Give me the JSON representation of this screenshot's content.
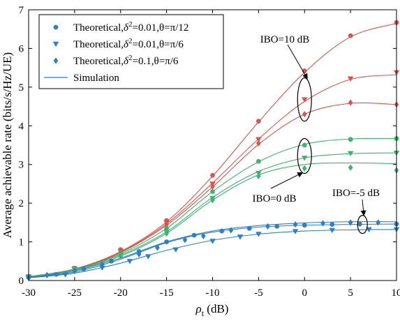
{
  "chart_data": {
    "type": "line",
    "xlabel_symbol": "ρ",
    "xlabel_sub": "t",
    "xlabel_unit": " (dB)",
    "ylabel": "Average achievable rate (bits/s/Hz/UE)",
    "xlim": [
      -30,
      10
    ],
    "ylim": [
      0,
      7
    ],
    "xticks": [
      -30,
      -25,
      -20,
      -15,
      -10,
      -5,
      0,
      5,
      10
    ],
    "yticks": [
      0,
      1,
      2,
      3,
      4,
      5,
      6,
      7
    ],
    "grid": false,
    "legend_position": "top-left",
    "legend": [
      {
        "marker": "circle",
        "pre": "Theoretical,",
        "sym": "δ",
        "sup": "2",
        "post": "=0.01,θ=π/12"
      },
      {
        "marker": "triangle-down",
        "pre": "Theoretical,",
        "sym": "δ",
        "sup": "2",
        "post": "=0.01,θ=π/6"
      },
      {
        "marker": "diamond",
        "pre": "Theoretical,",
        "sym": "δ",
        "sup": "2",
        "post": "=0.1,θ=π/6"
      },
      {
        "marker": "line",
        "pre": "Simulation",
        "sym": "",
        "sup": "",
        "post": ""
      }
    ],
    "annotations": [
      {
        "text": "IBO=10 dB",
        "x": 0,
        "y": 4.7
      },
      {
        "text": "IBO=0 dB",
        "x": 0,
        "y": 3.15
      },
      {
        "text": "IBO=-5 dB",
        "x": 6.5,
        "y": 1.45
      }
    ],
    "groups": [
      {
        "name": "IBO=10 dB",
        "color": "#d9534f",
        "series": [
          {
            "marker": "circle",
            "points": [
              [
                -30,
                0.1
              ],
              [
                -25,
                0.32
              ],
              [
                -20,
                0.8
              ],
              [
                -15,
                1.55
              ],
              [
                -10,
                2.72
              ],
              [
                -5,
                4.12
              ],
              [
                0,
                5.42
              ],
              [
                5,
                6.33
              ],
              [
                10,
                6.67
              ]
            ],
            "curve": [
              [
                -30,
                0.1
              ],
              [
                -25,
                0.3
              ],
              [
                -20,
                0.75
              ],
              [
                -15,
                1.52
              ],
              [
                -10,
                2.7
              ],
              [
                -5,
                4.1
              ],
              [
                0,
                5.38
              ],
              [
                5,
                6.3
              ],
              [
                10,
                6.65
              ]
            ]
          },
          {
            "marker": "triangle-down",
            "points": [
              [
                -30,
                0.1
              ],
              [
                -25,
                0.31
              ],
              [
                -20,
                0.76
              ],
              [
                -15,
                1.5
              ],
              [
                -10,
                2.5
              ],
              [
                -5,
                3.65
              ],
              [
                0,
                4.68
              ],
              [
                5,
                5.22
              ],
              [
                10,
                5.38
              ]
            ],
            "curve": [
              [
                -30,
                0.1
              ],
              [
                -25,
                0.3
              ],
              [
                -20,
                0.74
              ],
              [
                -15,
                1.47
              ],
              [
                -10,
                2.52
              ],
              [
                -5,
                3.66
              ],
              [
                0,
                4.63
              ],
              [
                5,
                5.2
              ],
              [
                10,
                5.32
              ]
            ]
          },
          {
            "marker": "diamond",
            "points": [
              [
                -30,
                0.1
              ],
              [
                -25,
                0.3
              ],
              [
                -20,
                0.74
              ],
              [
                -15,
                1.45
              ],
              [
                -10,
                2.43
              ],
              [
                -5,
                3.55
              ],
              [
                0,
                4.3
              ],
              [
                5,
                4.6
              ],
              [
                10,
                4.55
              ]
            ],
            "curve": [
              [
                -30,
                0.1
              ],
              [
                -25,
                0.29
              ],
              [
                -20,
                0.72
              ],
              [
                -15,
                1.43
              ],
              [
                -10,
                2.42
              ],
              [
                -5,
                3.52
              ],
              [
                0,
                4.3
              ],
              [
                5,
                4.58
              ],
              [
                10,
                4.55
              ]
            ]
          }
        ]
      },
      {
        "name": "IBO=0 dB",
        "color": "#3cb46e",
        "series": [
          {
            "marker": "circle",
            "points": [
              [
                -30,
                0.1
              ],
              [
                -25,
                0.3
              ],
              [
                -20,
                0.7
              ],
              [
                -15,
                1.35
              ],
              [
                -10,
                2.3
              ],
              [
                -5,
                3.08
              ],
              [
                0,
                3.5
              ],
              [
                5,
                3.65
              ],
              [
                10,
                3.67
              ]
            ],
            "curve": [
              [
                -30,
                0.1
              ],
              [
                -25,
                0.29
              ],
              [
                -20,
                0.69
              ],
              [
                -15,
                1.35
              ],
              [
                -10,
                2.3
              ],
              [
                -5,
                3.07
              ],
              [
                0,
                3.52
              ],
              [
                5,
                3.66
              ],
              [
                10,
                3.67
              ]
            ]
          },
          {
            "marker": "triangle-down",
            "points": [
              [
                -30,
                0.1
              ],
              [
                -25,
                0.28
              ],
              [
                -20,
                0.66
              ],
              [
                -15,
                1.25
              ],
              [
                -10,
                2.13
              ],
              [
                -5,
                2.78
              ],
              [
                0,
                3.17
              ],
              [
                5,
                3.29
              ],
              [
                10,
                3.3
              ]
            ],
            "curve": [
              [
                -30,
                0.1
              ],
              [
                -25,
                0.28
              ],
              [
                -20,
                0.66
              ],
              [
                -15,
                1.26
              ],
              [
                -10,
                2.15
              ],
              [
                -5,
                2.82
              ],
              [
                0,
                3.17
              ],
              [
                5,
                3.28
              ],
              [
                10,
                3.3
              ]
            ]
          },
          {
            "marker": "diamond",
            "points": [
              [
                -30,
                0.1
              ],
              [
                -25,
                0.27
              ],
              [
                -20,
                0.63
              ],
              [
                -15,
                1.22
              ],
              [
                -10,
                2.08
              ],
              [
                -5,
                2.7
              ],
              [
                0,
                2.9
              ],
              [
                5,
                2.92
              ],
              [
                10,
                2.85
              ]
            ],
            "curve": [
              [
                -30,
                0.1
              ],
              [
                -25,
                0.27
              ],
              [
                -20,
                0.63
              ],
              [
                -15,
                1.22
              ],
              [
                -10,
                2.08
              ],
              [
                -5,
                2.73
              ],
              [
                0,
                3.0
              ],
              [
                5,
                3.04
              ],
              [
                10,
                3.02
              ]
            ]
          }
        ]
      },
      {
        "name": "IBO=-5 dB",
        "color": "#2f7fc1",
        "series": [
          {
            "marker": "circle",
            "points": [
              [
                -30,
                0.08
              ],
              [
                -27,
                0.16
              ],
              [
                -24,
                0.3
              ],
              [
                -21,
                0.5
              ],
              [
                -18,
                0.75
              ],
              [
                -15,
                1.0
              ],
              [
                -12,
                1.17
              ],
              [
                -9,
                1.28
              ],
              [
                -6,
                1.35
              ],
              [
                -3,
                1.4
              ],
              [
                0,
                1.43
              ],
              [
                3,
                1.45
              ],
              [
                6,
                1.46
              ],
              [
                10,
                1.46
              ]
            ],
            "curve": [
              [
                -30,
                0.08
              ],
              [
                -25,
                0.22
              ],
              [
                -20,
                0.55
              ],
              [
                -15,
                0.98
              ],
              [
                -10,
                1.25
              ],
              [
                -5,
                1.38
              ],
              [
                0,
                1.43
              ],
              [
                5,
                1.45
              ],
              [
                10,
                1.46
              ]
            ]
          },
          {
            "marker": "triangle-down",
            "points": [
              [
                -30,
                0.07
              ],
              [
                -26,
                0.15
              ],
              [
                -22,
                0.33
              ],
              [
                -19,
                0.5
              ],
              [
                -17,
                0.62
              ],
              [
                -14,
                0.8
              ],
              [
                -10,
                1.02
              ],
              [
                -7,
                1.13
              ],
              [
                -5,
                1.2
              ],
              [
                -1,
                1.27
              ],
              [
                3,
                1.3
              ],
              [
                7,
                1.32
              ],
              [
                10,
                1.32
              ]
            ],
            "curve": [
              [
                -30,
                0.07
              ],
              [
                -25,
                0.19
              ],
              [
                -20,
                0.45
              ],
              [
                -15,
                0.78
              ],
              [
                -10,
                1.04
              ],
              [
                -5,
                1.2
              ],
              [
                0,
                1.28
              ],
              [
                5,
                1.31
              ],
              [
                10,
                1.32
              ]
            ]
          },
          {
            "marker": "diamond",
            "points": [
              [
                -30,
                0.08
              ],
              [
                -28,
                0.14
              ],
              [
                -25,
                0.25
              ],
              [
                -22,
                0.42
              ],
              [
                -18,
                0.68
              ],
              [
                -16,
                0.85
              ],
              [
                -13,
                1.05
              ],
              [
                -11,
                1.15
              ],
              [
                -8,
                1.3
              ],
              [
                -4,
                1.4
              ],
              [
                -1,
                1.45
              ],
              [
                2,
                1.48
              ],
              [
                5,
                1.5
              ],
              [
                8,
                1.5
              ]
            ],
            "curve": [
              [
                -30,
                0.08
              ],
              [
                -25,
                0.25
              ],
              [
                -20,
                0.58
              ],
              [
                -15,
                1.0
              ],
              [
                -10,
                1.28
              ],
              [
                -5,
                1.42
              ],
              [
                0,
                1.49
              ],
              [
                5,
                1.52
              ],
              [
                10,
                1.52
              ]
            ]
          }
        ]
      }
    ]
  }
}
